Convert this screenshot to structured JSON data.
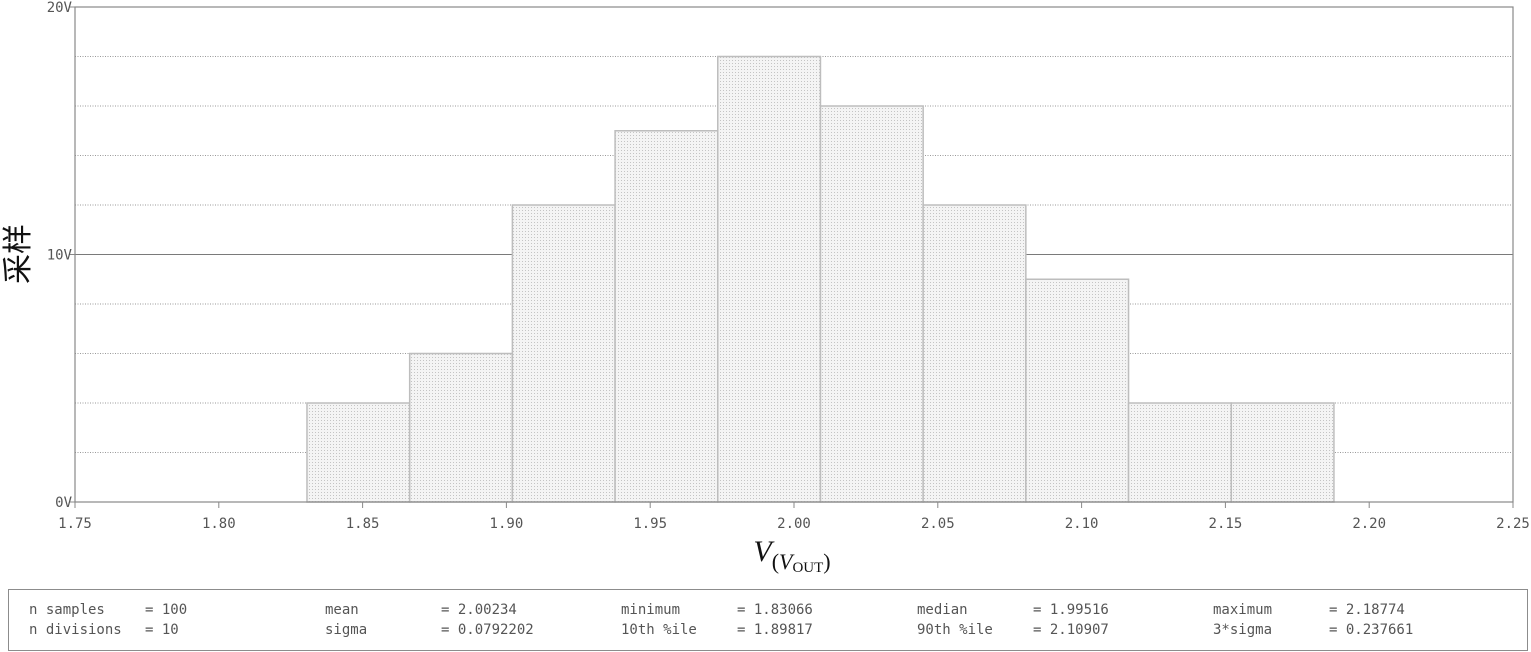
{
  "chart_data": {
    "type": "bar",
    "title": "",
    "xlabel_main": "V",
    "xlabel_sub_open": "(",
    "xlabel_sub_main": "V",
    "xlabel_sub_sub": "OUT",
    "xlabel_sub_close": ")",
    "ylabel": "采样",
    "xlim": [
      1.75,
      2.25
    ],
    "ylim": [
      0,
      20
    ],
    "x_ticks": [
      "1.75",
      "1.80",
      "1.85",
      "1.90",
      "1.95",
      "2.00",
      "2.05",
      "2.10",
      "2.15",
      "2.20",
      "2.25"
    ],
    "y_ticks": [
      {
        "value": 0,
        "label": "0V"
      },
      {
        "value": 10,
        "label": "10V"
      },
      {
        "value": 20,
        "label": "20V"
      }
    ],
    "bin_edges": [
      1.83066,
      1.866368,
      1.902076,
      1.937784,
      1.973492,
      2.0092,
      2.044908,
      2.080616,
      2.116324,
      2.152032,
      2.18774
    ],
    "values": [
      4,
      6,
      12,
      15,
      18,
      16,
      12,
      9,
      4,
      4
    ],
    "grid": true,
    "minor_grid_step": 2,
    "colors": {
      "bar_fill": "#eeeeee",
      "bar_stroke": "#bdbdbd",
      "axis": "#888888",
      "major_grid": "#7a7a7a",
      "minor_grid": "#9a9a9a"
    }
  },
  "stats": [
    [
      {
        "key": "n samples",
        "value": "= 100"
      },
      {
        "key": "n divisions",
        "value": "= 10"
      }
    ],
    [
      {
        "key": "mean",
        "value": "= 2.00234"
      },
      {
        "key": "sigma",
        "value": "= 0.0792202"
      }
    ],
    [
      {
        "key": "minimum",
        "value": "= 1.83066"
      },
      {
        "key": "10th %ile",
        "value": "= 1.89817"
      }
    ],
    [
      {
        "key": "median",
        "value": "= 1.99516"
      },
      {
        "key": "90th %ile",
        "value": "= 2.10907"
      }
    ],
    [
      {
        "key": "maximum",
        "value": "= 2.18774"
      },
      {
        "key": "3*sigma",
        "value": "= 0.237661"
      }
    ]
  ]
}
